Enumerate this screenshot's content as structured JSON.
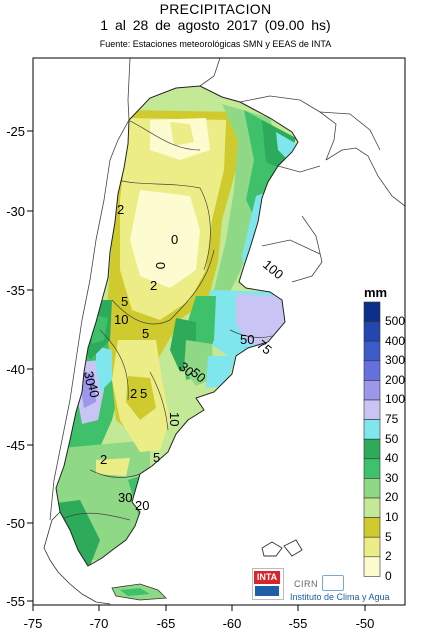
{
  "header": {
    "title": "PRECIPITACION",
    "period": "1  al  28  de  agosto 2017  (09.00 hs)",
    "source": "Fuente: Estaciones meteorológicas SMN y EEAS de INTA"
  },
  "axes": {
    "x_ticks": [
      "-75",
      "-70",
      "-65",
      "-60",
      "-55",
      "-50"
    ],
    "y_ticks": [
      "-25",
      "-30",
      "-35",
      "-40",
      "-45",
      "-50",
      "-55"
    ]
  },
  "legend": {
    "unit": "mm",
    "levels": [
      {
        "label": "500",
        "color": "#0b2f8a"
      },
      {
        "label": "400",
        "color": "#2347b0"
      },
      {
        "label": "300",
        "color": "#3d5ccc"
      },
      {
        "label": "200",
        "color": "#6570dc"
      },
      {
        "label": "100",
        "color": "#9c97ea"
      },
      {
        "label": "75",
        "color": "#c8c4f3"
      },
      {
        "label": "50",
        "color": "#7fe6ee"
      },
      {
        "label": "40",
        "color": "#2daa5a"
      },
      {
        "label": "30",
        "color": "#3fc06a"
      },
      {
        "label": "20",
        "color": "#8fd986"
      },
      {
        "label": "10",
        "color": "#c3e996"
      },
      {
        "label": "5",
        "color": "#cfcb2e"
      },
      {
        "label": "2",
        "color": "#eded88"
      },
      {
        "label": "0",
        "color": "#fdfbd0"
      }
    ]
  },
  "contour_labels": [
    "2",
    "0",
    "2",
    "5",
    "10",
    "5",
    "100",
    "50",
    "75",
    "30",
    "40",
    "30",
    "50",
    "2",
    "5",
    "10",
    "5",
    "30",
    "20",
    "2",
    "0"
  ],
  "logos": {
    "inta": "INTA",
    "cirn": "CIRN",
    "cirn_subtitle": "Instituto de Clima y Agua"
  }
}
